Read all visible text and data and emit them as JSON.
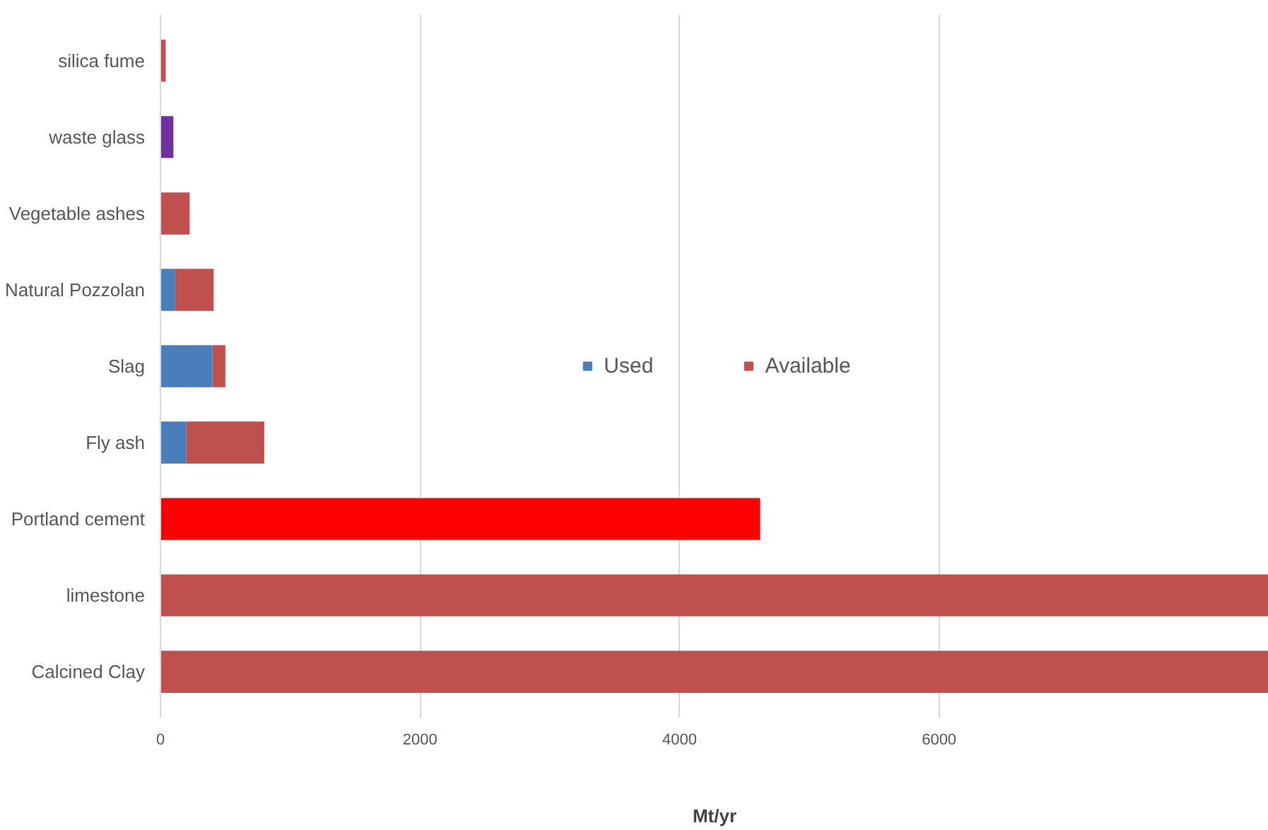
{
  "chart_data": {
    "type": "bar",
    "orientation": "horizontal",
    "stacked": true,
    "xlabel": "Mt/yr",
    "categories": [
      "silica fume",
      "waste glass",
      "Vegetable ashes",
      "Natural Pozzolan",
      "Slag",
      "Fly ash",
      "Portland cement",
      "limestone",
      "Calcined Clay"
    ],
    "series": [
      {
        "name": "Used",
        "color": "#4a7ebb",
        "values": [
          null,
          null,
          null,
          110,
          400,
          200,
          null,
          null,
          null
        ]
      },
      {
        "name": "Available",
        "color": "#c0504d",
        "colors": [
          "#c0504d",
          "#7030a0",
          "#c0504d",
          "#c0504d",
          "#c0504d",
          "#c0504d",
          "#ff0000",
          "#c0504d",
          "#c0504d"
        ],
        "values": [
          40,
          100,
          225,
          300,
          100,
          600,
          4620,
          8540,
          8540
        ]
      }
    ],
    "xlim": [
      0,
      8540
    ],
    "xticks": [
      0,
      2000,
      4000,
      6000
    ],
    "grid": "x",
    "legend": "center"
  }
}
